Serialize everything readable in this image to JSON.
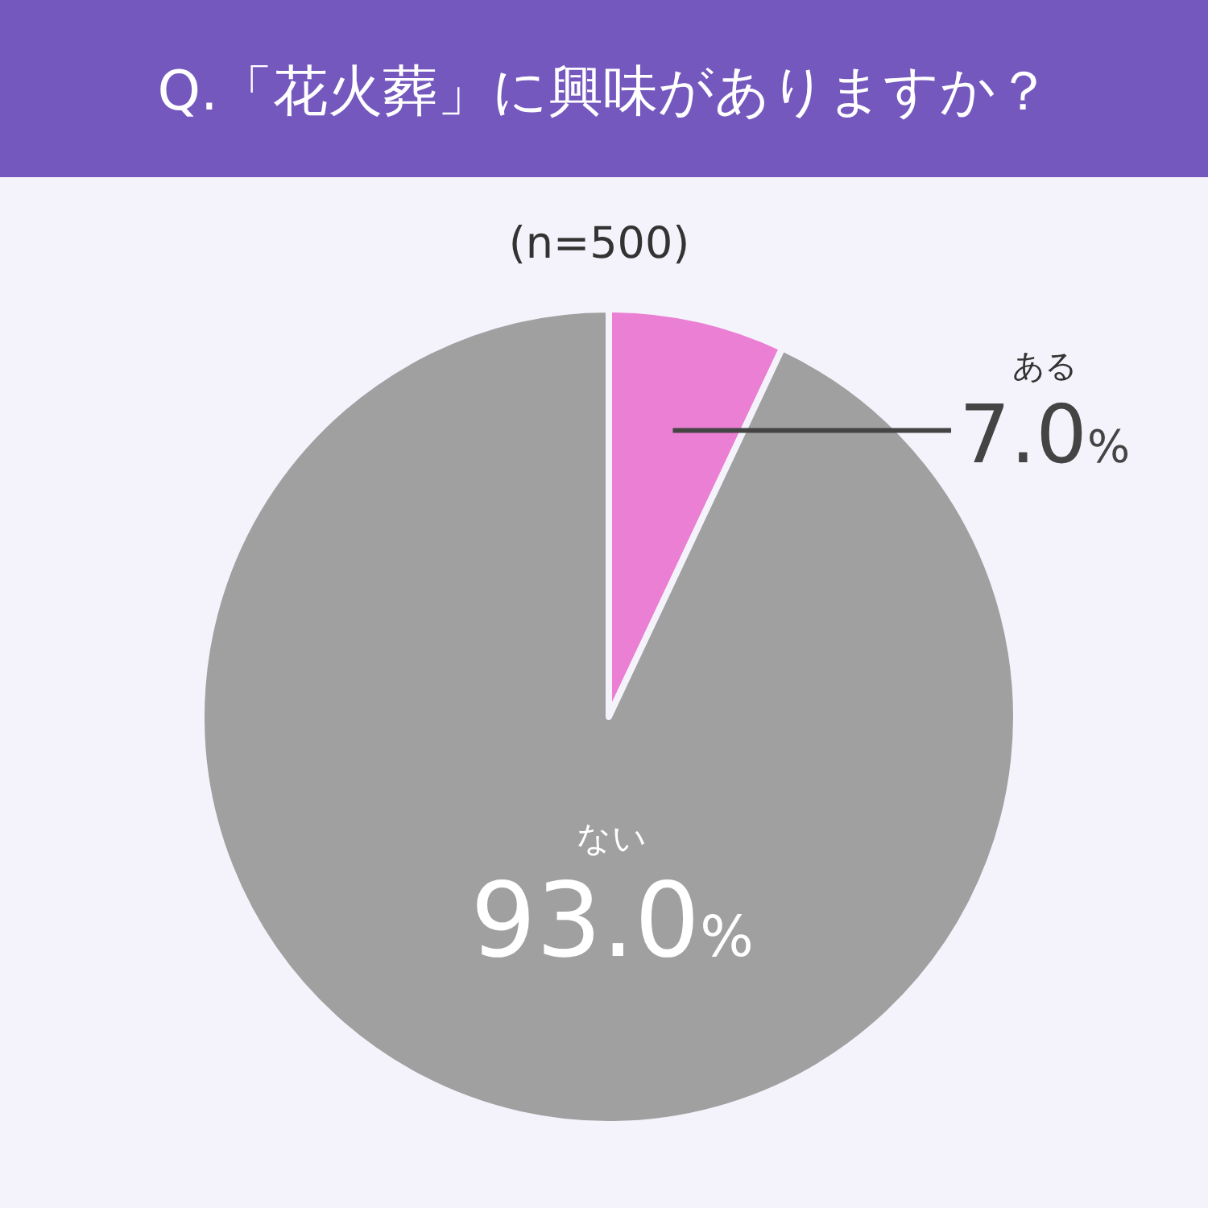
{
  "chart_data": {
    "type": "pie",
    "title": "Q.「花火葬」に興味がありますか？",
    "subtitle": "(n=500)",
    "categories": [
      "ある",
      "ない"
    ],
    "values": [
      7.0,
      93.0
    ],
    "colors": [
      "#eb7fd3",
      "#a0a0a0"
    ],
    "value_labels": [
      "7.0%",
      "93.0%"
    ]
  }
}
